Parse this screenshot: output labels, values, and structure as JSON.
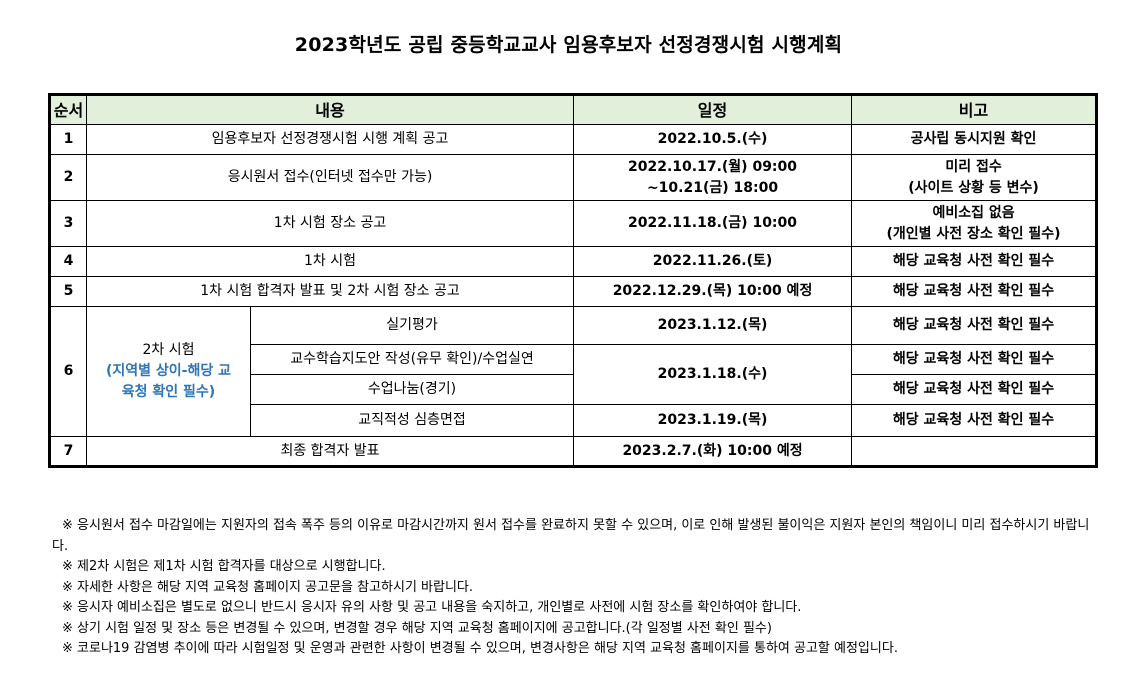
{
  "title": "2023학년도 공립 중등학교교사 임용후보자 선정경쟁시험 시행계획",
  "headers": {
    "order": "순서",
    "content": "내용",
    "schedule": "일정",
    "note": "비고"
  },
  "rows": [
    {
      "order": "1",
      "content": "임용후보자 선정경쟁시험 시행 계획 공고",
      "date": [
        "2022.10.5.(수)"
      ],
      "note": [
        "공사립 동시지원 확인"
      ]
    },
    {
      "order": "2",
      "content": "응시원서 접수(인터넷 접수만 가능)",
      "date": [
        "2022.10.17.(월) 09:00",
        "~10.21(금) 18:00"
      ],
      "note": [
        "미리 접수",
        "(사이트 상황 등 변수)"
      ]
    },
    {
      "order": "3",
      "content": "1차 시험 장소 공고",
      "date": [
        "2022.11.18.(금) 10:00"
      ],
      "note": [
        "예비소집 없음",
        "(개인별 사전  장소 확인 필수)"
      ]
    },
    {
      "order": "4",
      "content": "1차 시험",
      "date": [
        "2022.11.26.(토)"
      ],
      "note": [
        "해당 교육청 사전 확인 필수"
      ]
    },
    {
      "order": "5",
      "content": "1차 시험 합격자 발표 및 2차 시험 장소 공고",
      "date": [
        "2022.12.29.(목) 10:00 예정"
      ],
      "note": [
        "해당 교육청 사전 확인 필수"
      ]
    }
  ],
  "row6": {
    "order": "6",
    "group_label": "2차 시험",
    "group_sub": [
      "(지역별 상이-해당 교",
      "육청 확인 필수)"
    ],
    "items": [
      {
        "content": "실기평가",
        "date": "2023.1.12.(목)",
        "note": "해당 교육청 사전 확인 필수"
      },
      {
        "content": "교수학습지도안 작성(유무 확인)/수업실연",
        "date": "2023.1.18.(수)",
        "note": "해당 교육청 사전 확인 필수"
      },
      {
        "content": "수업나눔(경기)",
        "note": "해당 교육청 사전 확인 필수"
      },
      {
        "content": "교직적성 심층면접",
        "date": "2023.1.19.(목)",
        "note": "해당 교육청 사전 확인 필수"
      }
    ]
  },
  "row7": {
    "order": "7",
    "content": "최종 합격자 발표",
    "date": "2023.2.7.(화) 10:00 예정",
    "note": ""
  },
  "notes": [
    "※ 응시원서 접수 마감일에는 지원자의 접속 폭주 등의 이유로 마감시간까지 원서 접수를 완료하지 못할 수 있으며,  이로 인해 발생된  불이익은 지원자 본인의 책임이니 미리 접수하시기 바랍니다.",
    "※ 제2차 시험은 제1차 시험 합격자를 대상으로 시행합니다.",
    "※ 자세한 사항은 해당 지역 교육청 홈페이지 공고문을 참고하시기 바랍니다.",
    "※ 응시자 예비소집은 별도로 없으니 반드시 응시자 유의 사항 및 공고 내용을 숙지하고, 개인별로 사전에 시험 장소를 확인하여야 합니다.",
    "※ 상기 시험 일정 및 장소 등은 변경될 수 있으며, 변경할 경우 해당 지역 교육청 홈페이지에 공고합니다.(각 일정별 사전 확인 필수)",
    "※ 코로나19 감염병 추이에 따라 시험일정 및 운영과 관련한 사항이 변경될 수 있으며, 변경사항은 해당 지역 교육청 홈페이지를 통하여 공고할 예정입니다."
  ]
}
